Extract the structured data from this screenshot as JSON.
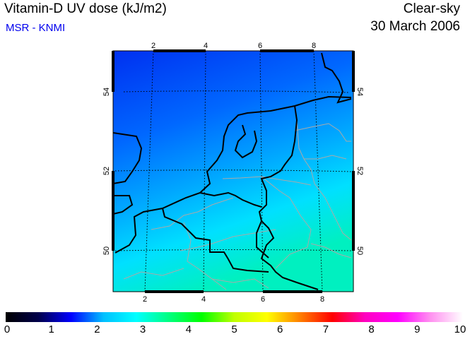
{
  "header": {
    "title": "Vitamin-D UV dose (kJ/m2)",
    "source": "MSR - KNMI",
    "condition": "Clear-sky",
    "date": "30 March 2006"
  },
  "map": {
    "lon_ticks": [
      "2",
      "4",
      "6",
      "8"
    ],
    "lat_ticks": [
      "54",
      "52",
      "50"
    ],
    "field_colors": {
      "north": "#0030f0",
      "middle": "#0090ff",
      "south": "#00f0c0"
    },
    "coastline_color": "#000000",
    "border_color": "#aaaaaa"
  },
  "colorbar": {
    "labels": [
      "0",
      "1",
      "2",
      "3",
      "4",
      "5",
      "6",
      "7",
      "8",
      "9",
      "10"
    ],
    "min": 0,
    "max": 10,
    "colors": [
      "#000000",
      "#00004a",
      "#0000ff",
      "#00c0ff",
      "#00ffff",
      "#00ff80",
      "#00ff00",
      "#c0ff00",
      "#ffff00",
      "#ff8000",
      "#ff0000",
      "#ff00c0",
      "#ff00ff",
      "#ff90f0",
      "#ffffff"
    ]
  }
}
